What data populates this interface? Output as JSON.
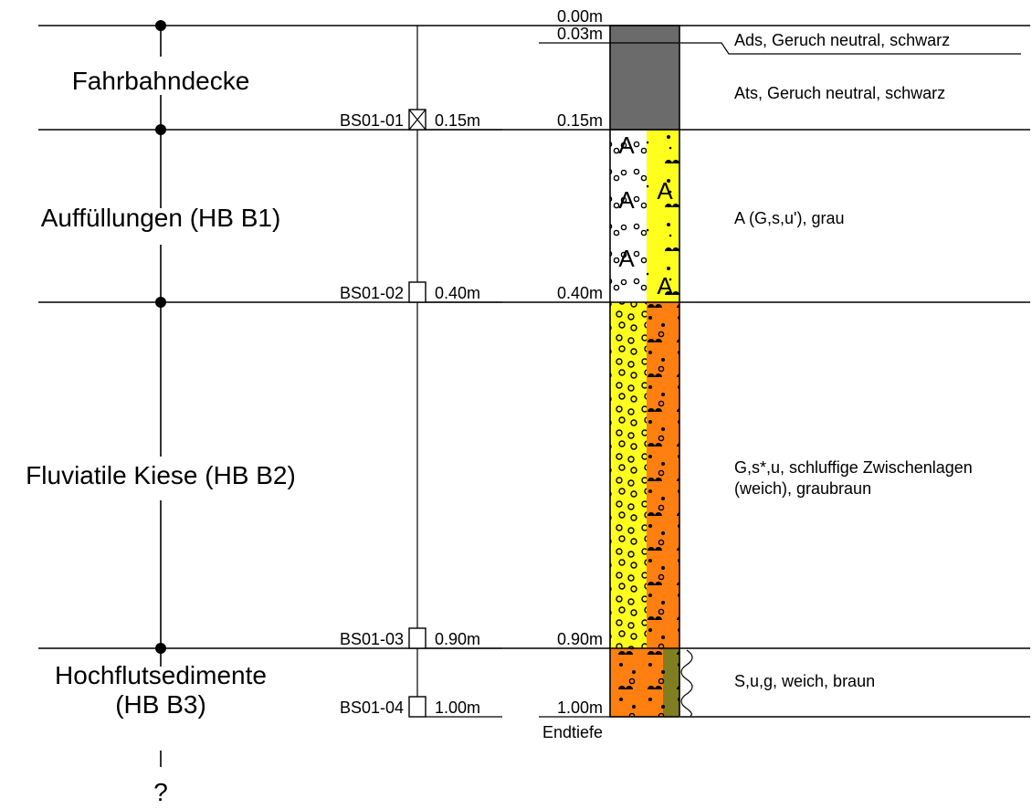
{
  "profile": {
    "units": [
      {
        "label": "Fahrbahndecke",
        "label_lines": [
          "Fahrbahndecke"
        ]
      },
      {
        "label": "Auffüllungen (HB B1)",
        "label_lines": [
          "Auffüllungen (HB B1)"
        ]
      },
      {
        "label": "Fluviatile Kiese (HB B2)",
        "label_lines": [
          "Fluviatile Kiese (HB B2)"
        ]
      },
      {
        "label": "Hochflutsedimente (HB B3)",
        "label_lines": [
          "Hochflutsedimente",
          "(HB B3)"
        ]
      }
    ],
    "unknown_marker": "?",
    "depth_labels": [
      "0.00m",
      "0.03m",
      "0.15m",
      "0.40m",
      "0.90m",
      "1.00m"
    ],
    "end_label": "Endtiefe",
    "samples": [
      {
        "id": "BS01-01",
        "depth": "0.15m",
        "marker": "crossed"
      },
      {
        "id": "BS01-02",
        "depth": "0.40m",
        "marker": "open"
      },
      {
        "id": "BS01-03",
        "depth": "0.90m",
        "marker": "open"
      },
      {
        "id": "BS01-04",
        "depth": "1.00m",
        "marker": "open"
      }
    ],
    "layers": [
      {
        "description_lines": [
          "Ads, Geruch neutral, schwarz"
        ],
        "fill": "#6b6b6b"
      },
      {
        "description_lines": [
          "Ats, Geruch neutral, schwarz"
        ],
        "fill": "#6b6b6b"
      },
      {
        "description_lines": [
          "A (G,s,u'), grau"
        ],
        "fill": "#ffffff",
        "fill_right": "#ffff1e",
        "symbol": "A"
      },
      {
        "description_lines": [
          "G,s*,u, schluffige Zwischenlagen",
          "(weich), graubraun"
        ],
        "fill": "#ffff1e",
        "fill_right": "#ff7f11"
      },
      {
        "description_lines": [
          "S,u,g, weich, braun"
        ],
        "fill": "#ff7f11",
        "fill_right": "#7f7f22"
      }
    ],
    "colors": {
      "asphalt": "#6b6b6b",
      "fill_yellow": "#ffff1e",
      "gravel_orange": "#ff7f11",
      "silt_olive": "#7f7f22",
      "line": "#000000"
    }
  }
}
